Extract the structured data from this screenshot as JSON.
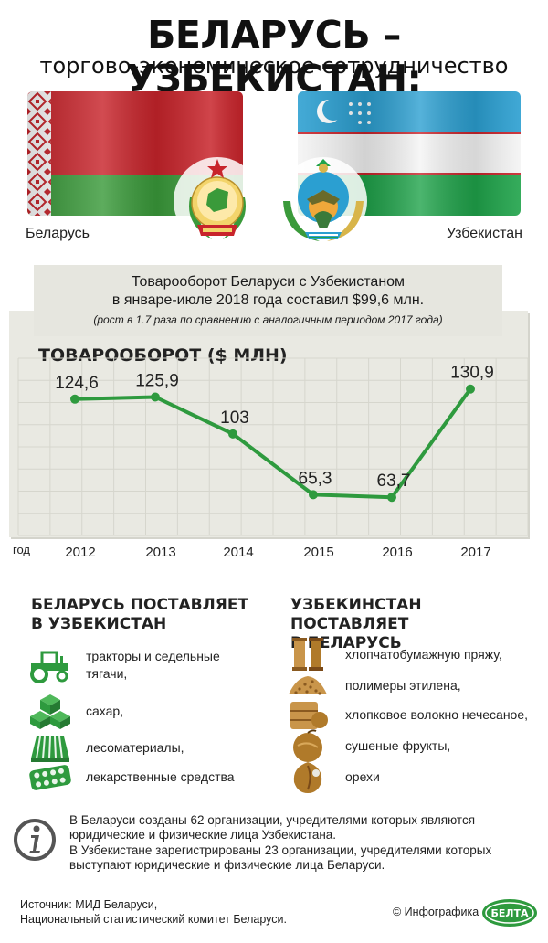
{
  "header": {
    "title": "БЕЛАРУСЬ – УЗБЕКИСТАН:",
    "subtitle": "торгово-экономическое сотрудничество"
  },
  "countries": {
    "left": "Беларусь",
    "right": "Узбекистан"
  },
  "colors": {
    "accent_green": "#2e9a3e",
    "belarus_red": "#c8242b",
    "belarus_green": "#3a9a3a",
    "uzbek_blue": "#2b9fd1",
    "uzbek_green": "#1fa34a",
    "icon_green": "#2e9a3e",
    "icon_brown": "#b07a2a",
    "panel_gray": "#e6e6df"
  },
  "summary": {
    "line1": "Товарооборот Беларуси с Узбекистаном",
    "line2": "в январе-июле 2018 года составил $99,6 млн.",
    "note": "(рост в 1.7 раза по сравнению с аналогичным периодом 2017 года)"
  },
  "chart_data": {
    "type": "line",
    "title": "ТОВАРООБОРОТ ($ МЛН)",
    "x_caption": "год",
    "categories": [
      "2012",
      "2013",
      "2014",
      "2015",
      "2016",
      "2017"
    ],
    "values": [
      124.6,
      125.9,
      103,
      65.3,
      63.7,
      130.9
    ],
    "value_labels": [
      "124,6",
      "125,9",
      "103",
      "65,3",
      "63,7",
      "130,9"
    ],
    "ylim": [
      40,
      150
    ],
    "grid": true,
    "line_color": "#2e9a3e"
  },
  "supply": {
    "left": {
      "heading_line1": "БЕЛАРУСЬ ПОСТАВЛЯЕТ",
      "heading_line2": "В УЗБЕКИСТАН",
      "items": [
        {
          "icon": "tractor-icon",
          "text": "тракторы и седельные тягачи,"
        },
        {
          "icon": "sugar-cubes-icon",
          "text": "сахар,"
        },
        {
          "icon": "lumber-icon",
          "text": "лесоматериалы,"
        },
        {
          "icon": "pill-blister-icon",
          "text": "лекарственные средства"
        }
      ]
    },
    "right": {
      "heading_line1": "УЗБЕКИНСТАН ПОСТАВЛЯЕТ",
      "heading_line2": "В БЕЛАРУСЬ",
      "items": [
        {
          "icon": "yarn-spools-icon",
          "text": "хлопчатобумажную пряжу,"
        },
        {
          "icon": "polymer-granules-icon",
          "text": "полимеры этилена,"
        },
        {
          "icon": "cotton-bale-icon",
          "text": "хлопковое волокно нечесаное,"
        },
        {
          "icon": "dried-fruit-icon",
          "text": "сушеные фрукты,"
        },
        {
          "icon": "nut-icon",
          "text": "орехи"
        }
      ]
    }
  },
  "info": {
    "icon": "info-icon",
    "p1": "В Беларуси созданы 62 организации, учредителями которых являются юридические и физические лица Узбекистана.",
    "p2": "В Узбекистане зарегистрированы 23 организации, учредителями которых выступают юридические и физические лица Беларуси."
  },
  "footer": {
    "source_line1": "Источник: МИД Беларуси,",
    "source_line2": "Национальный статистический комитет Беларуси.",
    "credit": "© Инфографика",
    "logo_text": "БЕЛТА"
  }
}
